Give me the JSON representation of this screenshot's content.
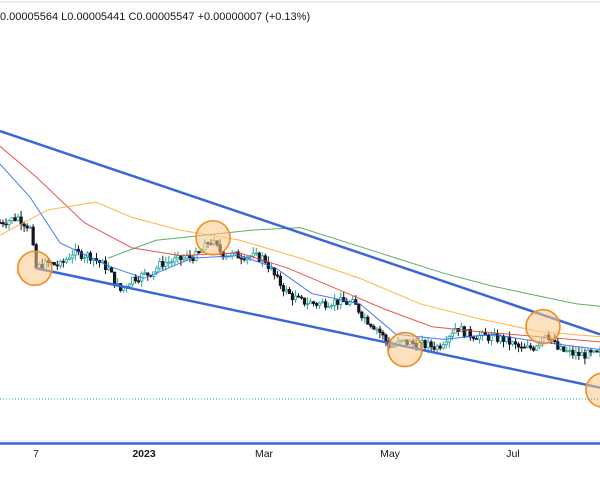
{
  "header": {
    "ohlc_text": "0.00005564  L0.00005441  C0.00005547  +0.00000007 (+0.13%)"
  },
  "colors": {
    "background": "#ffffff",
    "candle_up": "#26a69a",
    "candle_down": "#131722",
    "channel": "#3a66d8",
    "support": "#3a66d8",
    "ma_fast": "#2962ff",
    "ma_mid": "#e53935",
    "ma_slow": "#ffa726",
    "ma_long": "#43a047",
    "highlight_fill": "#fbc98a",
    "highlight_stroke": "#f28c1c"
  },
  "chart_data": {
    "type": "line",
    "subtype": "candlestick-price-chart-with-channel",
    "title": "",
    "xlabel": "",
    "ylabel": "",
    "x_ticks": [
      {
        "label": "7",
        "bold": false
      },
      {
        "label": "2023",
        "bold": true
      },
      {
        "label": "Mar",
        "bold": false
      },
      {
        "label": "May",
        "bold": false
      },
      {
        "label": "Jul",
        "bold": false
      }
    ],
    "x_tick_positions": [
      0.06,
      0.24,
      0.44,
      0.65,
      0.855
    ],
    "grid": false,
    "price_series": [
      {
        "x": 0.0,
        "y": 0.62
      },
      {
        "x": 0.03,
        "y": 0.64
      },
      {
        "x": 0.05,
        "y": 0.6
      },
      {
        "x": 0.06,
        "y": 0.44
      },
      {
        "x": 0.08,
        "y": 0.46
      },
      {
        "x": 0.1,
        "y": 0.45
      },
      {
        "x": 0.12,
        "y": 0.5
      },
      {
        "x": 0.15,
        "y": 0.49
      },
      {
        "x": 0.18,
        "y": 0.44
      },
      {
        "x": 0.2,
        "y": 0.35
      },
      {
        "x": 0.22,
        "y": 0.4
      },
      {
        "x": 0.25,
        "y": 0.42
      },
      {
        "x": 0.27,
        "y": 0.46
      },
      {
        "x": 0.29,
        "y": 0.47
      },
      {
        "x": 0.31,
        "y": 0.48
      },
      {
        "x": 0.33,
        "y": 0.49
      },
      {
        "x": 0.35,
        "y": 0.55
      },
      {
        "x": 0.37,
        "y": 0.5
      },
      {
        "x": 0.39,
        "y": 0.49
      },
      {
        "x": 0.41,
        "y": 0.49
      },
      {
        "x": 0.44,
        "y": 0.48
      },
      {
        "x": 0.46,
        "y": 0.4
      },
      {
        "x": 0.48,
        "y": 0.34
      },
      {
        "x": 0.5,
        "y": 0.31
      },
      {
        "x": 0.53,
        "y": 0.3
      },
      {
        "x": 0.56,
        "y": 0.31
      },
      {
        "x": 0.59,
        "y": 0.3
      },
      {
        "x": 0.61,
        "y": 0.24
      },
      {
        "x": 0.63,
        "y": 0.2
      },
      {
        "x": 0.65,
        "y": 0.13
      },
      {
        "x": 0.67,
        "y": 0.15
      },
      {
        "x": 0.7,
        "y": 0.14
      },
      {
        "x": 0.73,
        "y": 0.13
      },
      {
        "x": 0.76,
        "y": 0.21
      },
      {
        "x": 0.78,
        "y": 0.18
      },
      {
        "x": 0.81,
        "y": 0.17
      },
      {
        "x": 0.84,
        "y": 0.16
      },
      {
        "x": 0.87,
        "y": 0.12
      },
      {
        "x": 0.89,
        "y": 0.13
      },
      {
        "x": 0.91,
        "y": 0.19
      },
      {
        "x": 0.93,
        "y": 0.12
      },
      {
        "x": 0.96,
        "y": 0.1
      },
      {
        "x": 1.0,
        "y": 0.1
      }
    ],
    "moving_averages": [
      {
        "name": "",
        "color_key": "ma_fast",
        "points": [
          {
            "x": 0.0,
            "y": 0.85
          },
          {
            "x": 0.05,
            "y": 0.72
          },
          {
            "x": 0.1,
            "y": 0.54
          },
          {
            "x": 0.18,
            "y": 0.45
          },
          {
            "x": 0.24,
            "y": 0.4
          },
          {
            "x": 0.32,
            "y": 0.48
          },
          {
            "x": 0.4,
            "y": 0.49
          },
          {
            "x": 0.46,
            "y": 0.44
          },
          {
            "x": 0.52,
            "y": 0.34
          },
          {
            "x": 0.6,
            "y": 0.3
          },
          {
            "x": 0.66,
            "y": 0.18
          },
          {
            "x": 0.74,
            "y": 0.16
          },
          {
            "x": 0.82,
            "y": 0.18
          },
          {
            "x": 0.9,
            "y": 0.15
          },
          {
            "x": 1.0,
            "y": 0.12
          }
        ]
      },
      {
        "name": "",
        "color_key": "ma_mid",
        "points": [
          {
            "x": 0.0,
            "y": 0.92
          },
          {
            "x": 0.06,
            "y": 0.8
          },
          {
            "x": 0.14,
            "y": 0.62
          },
          {
            "x": 0.22,
            "y": 0.52
          },
          {
            "x": 0.3,
            "y": 0.49
          },
          {
            "x": 0.4,
            "y": 0.5
          },
          {
            "x": 0.48,
            "y": 0.44
          },
          {
            "x": 0.56,
            "y": 0.36
          },
          {
            "x": 0.64,
            "y": 0.28
          },
          {
            "x": 0.72,
            "y": 0.21
          },
          {
            "x": 0.8,
            "y": 0.19
          },
          {
            "x": 0.9,
            "y": 0.17
          },
          {
            "x": 1.0,
            "y": 0.15
          }
        ]
      },
      {
        "name": "",
        "color_key": "ma_slow",
        "points": [
          {
            "x": 0.0,
            "y": 0.57
          },
          {
            "x": 0.08,
            "y": 0.67
          },
          {
            "x": 0.16,
            "y": 0.7
          },
          {
            "x": 0.22,
            "y": 0.64
          },
          {
            "x": 0.3,
            "y": 0.59
          },
          {
            "x": 0.4,
            "y": 0.55
          },
          {
            "x": 0.5,
            "y": 0.48
          },
          {
            "x": 0.6,
            "y": 0.4
          },
          {
            "x": 0.7,
            "y": 0.3
          },
          {
            "x": 0.8,
            "y": 0.24
          },
          {
            "x": 0.9,
            "y": 0.19
          },
          {
            "x": 1.0,
            "y": 0.17
          }
        ]
      },
      {
        "name": "",
        "color_key": "ma_long",
        "points": [
          {
            "x": 0.18,
            "y": 0.48
          },
          {
            "x": 0.26,
            "y": 0.55
          },
          {
            "x": 0.34,
            "y": 0.57
          },
          {
            "x": 0.42,
            "y": 0.59
          },
          {
            "x": 0.5,
            "y": 0.6
          },
          {
            "x": 0.58,
            "y": 0.54
          },
          {
            "x": 0.66,
            "y": 0.48
          },
          {
            "x": 0.74,
            "y": 0.42
          },
          {
            "x": 0.82,
            "y": 0.37
          },
          {
            "x": 0.9,
            "y": 0.33
          },
          {
            "x": 0.96,
            "y": 0.3
          },
          {
            "x": 1.0,
            "y": 0.29
          }
        ]
      }
    ],
    "channel_lines": [
      {
        "name": "",
        "from": {
          "x": 0.0,
          "y": 0.98
        },
        "to": {
          "x": 1.0,
          "y": 0.18
        }
      },
      {
        "name": "",
        "from": {
          "x": 0.06,
          "y": 0.44
        },
        "to": {
          "x": 1.0,
          "y": -0.03
        }
      }
    ],
    "support_line": {
      "y": -0.25
    },
    "highlights": [
      {
        "x": 0.058,
        "y": 0.44
      },
      {
        "x": 0.355,
        "y": 0.56
      },
      {
        "x": 0.675,
        "y": 0.12
      },
      {
        "x": 0.905,
        "y": 0.21
      },
      {
        "x": 1.005,
        "y": -0.04
      }
    ]
  }
}
